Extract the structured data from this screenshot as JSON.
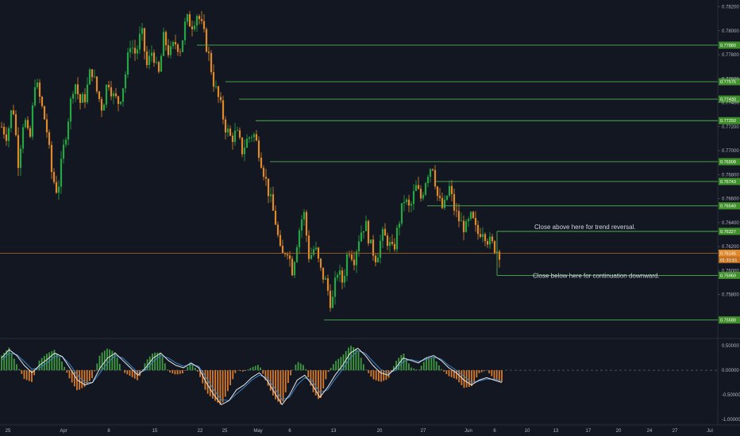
{
  "chart_data": {
    "type": "candlestick",
    "title": "",
    "colors": {
      "background": "#131722",
      "bull": "#26a641",
      "bear": "#e0892b",
      "level_line": "#4caf50",
      "level_tag": "#3f8f2a",
      "price_line": "#b36b1f",
      "price_tag": "#e08a2c",
      "macd": "#e8e8e8",
      "signal": "#3b82c4",
      "hist_pos": "#3f9b3f",
      "hist_neg": "#d97a29",
      "text": "#b2b5be"
    },
    "y_axis": {
      "range": [
        0.7548,
        0.7823
      ],
      "ticks": [
        "0.78200",
        "0.78000",
        "0.77800",
        "0.77600",
        "0.77400",
        "0.77200",
        "0.77000",
        "0.76800",
        "0.76600",
        "0.76400",
        "0.76200",
        "0.76000",
        "0.75800"
      ]
    },
    "x_axis_ticks": [
      "25",
      "Apr",
      "8",
      "15",
      "22",
      "25",
      "May",
      "6",
      "13",
      "20",
      "27",
      "Jun",
      "6",
      "10",
      "13",
      "17",
      "20",
      "24",
      "27",
      "Jul"
    ],
    "levels": [
      {
        "label": "0.77880",
        "value": 0.7788
      },
      {
        "label": "0.77575",
        "value": 0.77575
      },
      {
        "label": "0.77430",
        "value": 0.7743
      },
      {
        "label": "0.77250",
        "value": 0.7725
      },
      {
        "label": "0.76908",
        "value": 0.76908
      },
      {
        "label": "0.76743",
        "value": 0.76743
      },
      {
        "label": "0.76540",
        "value": 0.7654
      },
      {
        "label": "0.76327",
        "value": 0.76327
      },
      {
        "label": "0.75960",
        "value": 0.7596
      },
      {
        "label": "0.75588",
        "value": 0.75588
      }
    ],
    "current_price": {
      "label": "0.76145",
      "value": 0.76145,
      "countdown": "01:31:51"
    },
    "annotations": [
      {
        "text": "Close above here for trend reversal.",
        "value": 0.7634
      },
      {
        "text": "Close below here for continuation downward.",
        "value": 0.7596
      }
    ],
    "price_path": [
      [
        0.772,
        0.7712,
        0.774,
        0.769,
        0.773,
        0.7705,
        0.776,
        0.774,
        0.772,
        0.768,
        0.7665,
        0.77,
        0.773,
        0.776,
        0.774,
        0.7745,
        0.777,
        0.775,
        0.7735,
        0.776,
        0.7745,
        0.774,
        0.776,
        0.779,
        0.778,
        0.78,
        0.777,
        0.7785,
        0.776,
        0.7795,
        0.778,
        0.779,
        0.7785,
        0.781,
        0.7805,
        0.7815,
        0.78,
        0.778,
        0.7755,
        0.774,
        0.772,
        0.771,
        0.7715,
        0.77,
        0.771,
        0.7715,
        0.77,
        0.768,
        0.766,
        0.764,
        0.761,
        0.762,
        0.76,
        0.763,
        0.765,
        0.761,
        0.762,
        0.76,
        0.759,
        0.757,
        0.76,
        0.759,
        0.762,
        0.761,
        0.763,
        0.764,
        0.762,
        0.761,
        0.763,
        0.7625,
        0.7615,
        0.764,
        0.766,
        0.765,
        0.767,
        0.766,
        0.768,
        0.769,
        0.766,
        0.765,
        0.767,
        0.765,
        0.764,
        0.7635,
        0.7645,
        0.763,
        0.7635,
        0.7625,
        0.762,
        0.7615
      ]
    ],
    "macd": {
      "y_ticks": [
        "0.50000",
        "0.00000",
        "-0.50000",
        "-1.00000"
      ],
      "range": [
        -1.05,
        0.6
      ],
      "macd_values": [
        0.25,
        0.42,
        0.3,
        0.1,
        -0.05,
        0.1,
        0.22,
        0.35,
        0.28,
        0.05,
        -0.2,
        -0.3,
        -0.25,
        0.05,
        0.25,
        0.35,
        0.2,
        0.05,
        -0.1,
        0.05,
        0.25,
        0.35,
        0.2,
        0.1,
        0.05,
        0.15,
        0.05,
        -0.25,
        -0.5,
        -0.7,
        -0.62,
        -0.4,
        -0.3,
        -0.15,
        -0.05,
        -0.2,
        -0.45,
        -0.7,
        -0.5,
        -0.2,
        -0.1,
        -0.3,
        -0.55,
        -0.35,
        -0.1,
        0.1,
        0.35,
        0.45,
        0.3,
        0.1,
        -0.05,
        -0.1,
        0.05,
        0.25,
        0.2,
        0.15,
        0.25,
        0.3,
        0.2,
        0.05,
        -0.05,
        -0.2,
        -0.3,
        -0.2,
        -0.15,
        -0.2,
        -0.25
      ],
      "signal_values": [
        0.2,
        0.35,
        0.32,
        0.18,
        0.02,
        0.05,
        0.15,
        0.28,
        0.28,
        0.12,
        -0.1,
        -0.25,
        -0.25,
        -0.05,
        0.15,
        0.3,
        0.25,
        0.1,
        -0.05,
        0.0,
        0.18,
        0.3,
        0.25,
        0.15,
        0.08,
        0.12,
        0.08,
        -0.15,
        -0.4,
        -0.6,
        -0.62,
        -0.48,
        -0.35,
        -0.2,
        -0.1,
        -0.15,
        -0.35,
        -0.6,
        -0.55,
        -0.3,
        -0.15,
        -0.22,
        -0.45,
        -0.4,
        -0.18,
        0.02,
        0.25,
        0.4,
        0.35,
        0.18,
        0.02,
        -0.06,
        0.0,
        0.18,
        0.22,
        0.18,
        0.22,
        0.27,
        0.23,
        0.1,
        0.0,
        -0.12,
        -0.25,
        -0.22,
        -0.18,
        -0.18,
        -0.22
      ]
    }
  }
}
